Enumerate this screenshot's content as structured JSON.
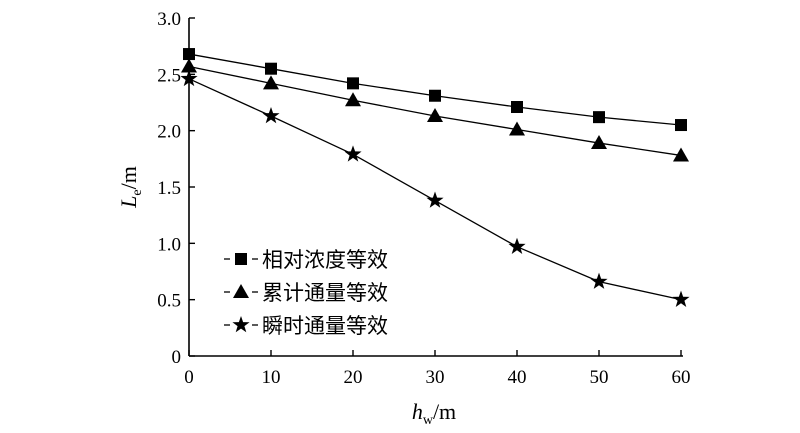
{
  "chart_data": {
    "type": "line",
    "x": [
      0,
      10,
      20,
      30,
      40,
      50,
      60
    ],
    "series": [
      {
        "name": "相对浓度等效",
        "marker": "square",
        "values": [
          2.68,
          2.55,
          2.42,
          2.31,
          2.21,
          2.12,
          2.05
        ]
      },
      {
        "name": "累计通量等效",
        "marker": "triangle",
        "values": [
          2.57,
          2.42,
          2.27,
          2.13,
          2.01,
          1.89,
          1.78
        ]
      },
      {
        "name": "瞬时通量等效",
        "marker": "star",
        "values": [
          2.46,
          2.13,
          1.79,
          1.38,
          0.97,
          0.66,
          0.5
        ]
      }
    ],
    "xlabel_main": "h",
    "xlabel_sub": "w",
    "xlabel_unit": "/m",
    "ylabel_main": "L",
    "ylabel_sub": "e",
    "ylabel_unit": "/m",
    "xlim": [
      0,
      60
    ],
    "ylim": [
      0,
      3.0
    ],
    "xticks": [
      0,
      10,
      20,
      30,
      40,
      50,
      60
    ],
    "yticks": [
      0,
      0.5,
      1.0,
      1.5,
      2.0,
      2.5,
      3.0
    ],
    "ytick_labels": [
      "0",
      "0.5",
      "1.0",
      "1.5",
      "2.0",
      "2.5",
      "3.0"
    ],
    "grid": false,
    "legend_position": "bottom-left",
    "line_color": "#000000"
  }
}
